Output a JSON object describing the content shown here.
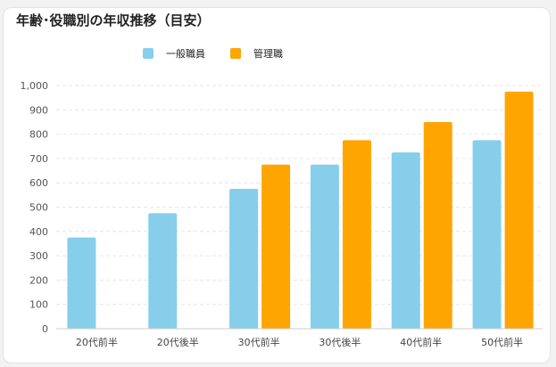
{
  "chart_data": {
    "type": "bar",
    "title": "年齢･役職別の年収推移（目安）",
    "xlabel": "",
    "ylabel": "",
    "categories": [
      "20代前半",
      "20代後半",
      "30代前半",
      "30代後半",
      "40代前半",
      "50代前半"
    ],
    "series": [
      {
        "name": "一般職員",
        "color": "#87ceeb",
        "values": [
          375,
          475,
          575,
          675,
          725,
          775
        ]
      },
      {
        "name": "管理職",
        "color": "#ffa500",
        "values": [
          null,
          null,
          675,
          775,
          850,
          975
        ]
      }
    ],
    "ylim": [
      0,
      1000
    ],
    "yticks": [
      "0",
      "100",
      "200",
      "300",
      "400",
      "500",
      "600",
      "700",
      "800",
      "900",
      "1,000"
    ],
    "grid": true,
    "legend_position": "top"
  }
}
